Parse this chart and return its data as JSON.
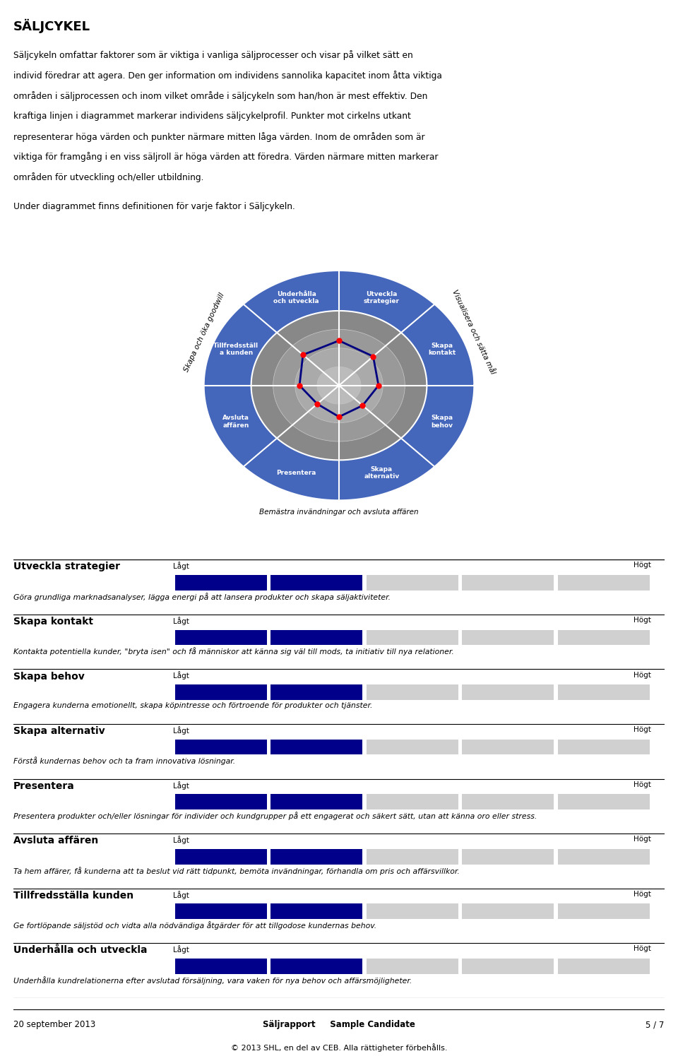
{
  "title": "SÄLJCYKEL",
  "intro_lines": [
    "Säljcykeln omfattar faktorer som är viktiga i vanliga säljprocesser och visar på vilket sätt en",
    "individ föredrar att agera. Den ger information om individens sannolika kapacitet inom åtta viktiga",
    "områden i säljprocessen och inom vilket område i säljcykeln som han/hon är mest effektiv. Den",
    "kraftiga linjen i diagrammet markerar individens säljcykelprofil. Punkter mot cirkelns utkant",
    "representerar höga värden och punkter närmare mitten låga värden. Inom de områden som är",
    "viktiga för framgång i en viss säljroll är höga värden att föredra. Värden närmare mitten markerar",
    "områden för utveckling och/eller utbildning."
  ],
  "under_text": "Under diagrammet finns definitionen för varje faktor i Säljcykeln.",
  "radar_labels": [
    "Utveckla\nstrategier",
    "Skapa\nkontakt",
    "Skapa\nbehov",
    "Skapa\nalternativ",
    "Presentera",
    "Avsluta\naffären",
    "Tillfredsställ\na kunden",
    "Underhålla\noch utveckla"
  ],
  "radar_values": [
    0.6,
    0.55,
    0.45,
    0.38,
    0.42,
    0.35,
    0.45,
    0.58
  ],
  "outer_arc_right": "Visualisera och sätta mål",
  "outer_arc_bottom": "Bemästra invändningar och avsluta affären",
  "outer_arc_left": "Skapa och öka goodwill",
  "blue_color": "#4466BB",
  "dark_blue_line": "#000080",
  "categories": [
    "Utveckla strategier",
    "Skapa kontakt",
    "Skapa behov",
    "Skapa alternativ",
    "Presentera",
    "Avsluta affären",
    "Tillfredsställa kunden",
    "Underhålla och utveckla"
  ],
  "descriptions": [
    "Göra grundliga marknadsanalyser, lägga energi på att lansera produkter och skapa säljaktiviteter.",
    "Kontakta potentiella kunder, \"bryta isen\" och få människor att känna sig väl till mods, ta initiativ till nya relationer.",
    "Engagera kunderna emotionellt, skapa köpintresse och förtroende för produkter och tjänster.",
    "Förstå kundernas behov och ta fram innovativa lösningar.",
    "Presentera produkter och/eller lösningar för individer och kundgrupper på ett engagerat och säkert sätt, utan att känna oro eller stress.",
    "Ta hem affärer, få kunderna att ta beslut vid rätt tidpunkt, bemöta invändningar, förhandla om pris och affärsvillkor.",
    "Ge fortlöpande säljstöd och vidta alla nödvändiga åtgärder för att tillgodose kundernas behov.",
    "Underhålla kundrelationerna efter avslutad försäljning, vara vaken för nya behov och affärsmöjligheter."
  ],
  "bar_filled": 2,
  "bar_total": 5,
  "bar_color_filled": "#00008B",
  "bar_color_empty": "#d0d0d0",
  "footer_date": "20 september 2013",
  "footer_report": "Säljrapport",
  "footer_name": "Sample Candidate",
  "footer_page": "5 / 7",
  "footer_copy": "© 2013 SHL, en del av CEB. Alla rättigheter förbehålls."
}
